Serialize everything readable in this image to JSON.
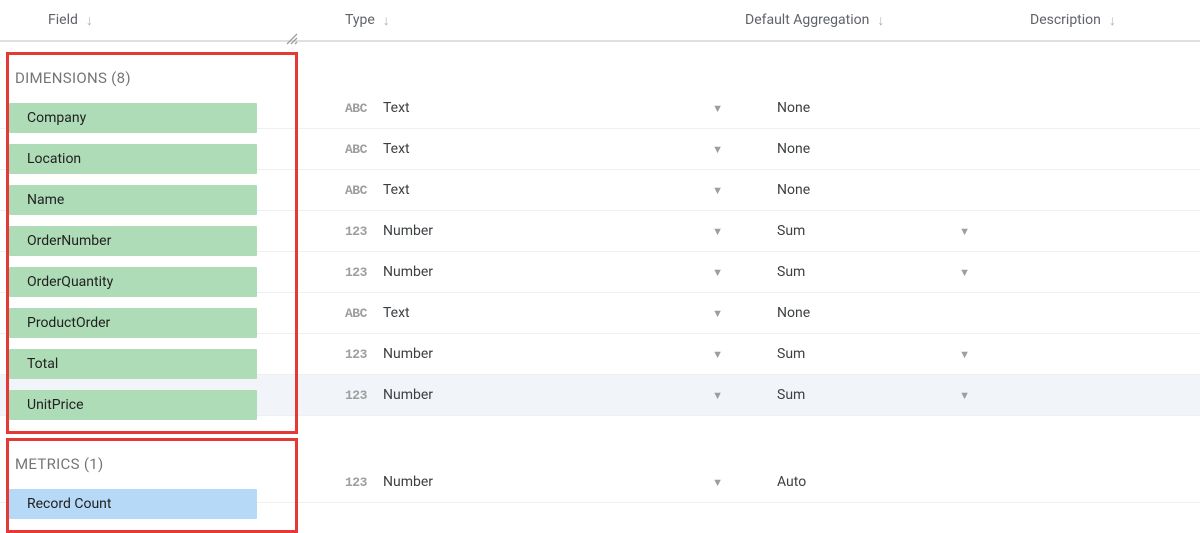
{
  "columns": {
    "field": "Field",
    "type": "Type",
    "aggregation": "Default Aggregation",
    "description": "Description"
  },
  "groups": {
    "dimensions": {
      "label": "DIMENSIONS",
      "count": 8
    },
    "metrics": {
      "label": "METRICS",
      "count": 1
    }
  },
  "type_icons": {
    "text": "ABC",
    "number": "123"
  },
  "chip_colors": {
    "dimension": "#aedcb7",
    "metric": "#b5d9f6"
  },
  "highlight_color": "#e53935",
  "fields": [
    {
      "name": "Company",
      "type_icon": "text",
      "type": "Text",
      "agg": "None",
      "agg_dropdown": false,
      "group": "dimension"
    },
    {
      "name": "Location",
      "type_icon": "text",
      "type": "Text",
      "agg": "None",
      "agg_dropdown": false,
      "group": "dimension"
    },
    {
      "name": "Name",
      "type_icon": "text",
      "type": "Text",
      "agg": "None",
      "agg_dropdown": false,
      "group": "dimension"
    },
    {
      "name": "OrderNumber",
      "type_icon": "number",
      "type": "Number",
      "agg": "Sum",
      "agg_dropdown": true,
      "group": "dimension"
    },
    {
      "name": "OrderQuantity",
      "type_icon": "number",
      "type": "Number",
      "agg": "Sum",
      "agg_dropdown": true,
      "group": "dimension"
    },
    {
      "name": "ProductOrder",
      "type_icon": "text",
      "type": "Text",
      "agg": "None",
      "agg_dropdown": false,
      "group": "dimension"
    },
    {
      "name": "Total",
      "type_icon": "number",
      "type": "Number",
      "agg": "Sum",
      "agg_dropdown": true,
      "group": "dimension"
    },
    {
      "name": "UnitPrice",
      "type_icon": "number",
      "type": "Number",
      "agg": "Sum",
      "agg_dropdown": true,
      "group": "dimension",
      "hover": true
    }
  ],
  "metrics_fields": [
    {
      "name": "Record Count",
      "type_icon": "number",
      "type": "Number",
      "agg": "Auto",
      "agg_dropdown": false,
      "group": "metric"
    }
  ]
}
